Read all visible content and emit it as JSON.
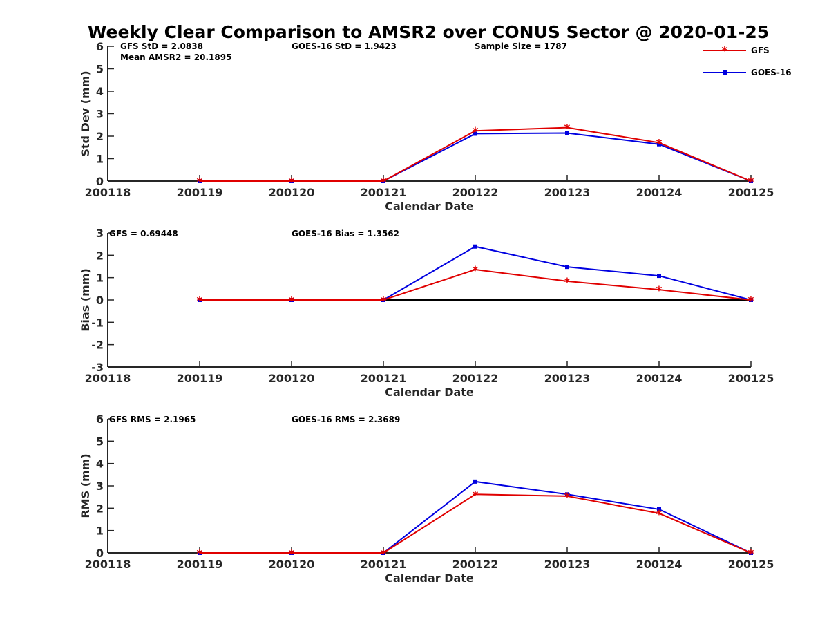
{
  "title": "Weekly Clear Comparison to AMSR2 over CONUS Sector @ 2020-01-25",
  "colors": {
    "gfs": "#e00000",
    "goes": "#0000e0",
    "axis": "#262626",
    "zero_line": "#000000"
  },
  "legend": {
    "placement": "top-right",
    "entries": [
      {
        "name": "GFS",
        "color": "#e00000",
        "marker": "asterisk"
      },
      {
        "name": "GOES-16",
        "color": "#0000e0",
        "marker": "square"
      }
    ]
  },
  "chart_data": [
    {
      "type": "line",
      "xlabel": "Calendar Date",
      "ylabel": "Std Dev (mm)",
      "x_ticks": [
        "200118",
        "200119",
        "200120",
        "200121",
        "200122",
        "200123",
        "200124",
        "200125"
      ],
      "y_ticks": [
        "0",
        "1",
        "2",
        "3",
        "4",
        "5",
        "6"
      ],
      "ylim": [
        0,
        6
      ],
      "annotations": [
        "GFS StD = 2.0838",
        "GOES-16 StD = 1.9423",
        "Sample Size = 1787",
        "Mean AMSR2 = 20.1895"
      ],
      "series": [
        {
          "name": "GFS",
          "x": [
            "200119",
            "200120",
            "200121",
            "200122",
            "200123",
            "200124",
            "200125"
          ],
          "values": [
            0,
            0,
            0,
            2.24,
            2.38,
            1.71,
            0
          ]
        },
        {
          "name": "GOES-16",
          "x": [
            "200119",
            "200120",
            "200121",
            "200122",
            "200123",
            "200124",
            "200125"
          ],
          "values": [
            0,
            0,
            0,
            2.11,
            2.14,
            1.64,
            0
          ]
        }
      ]
    },
    {
      "type": "line",
      "xlabel": "Calendar Date",
      "ylabel": "Bias (mm)",
      "x_ticks": [
        "200118",
        "200119",
        "200120",
        "200121",
        "200122",
        "200123",
        "200124",
        "200125"
      ],
      "y_ticks": [
        "-3",
        "-2",
        "-1",
        "0",
        "1",
        "2",
        "3"
      ],
      "ylim": [
        -3,
        3
      ],
      "zero_line": true,
      "annotations": [
        "GFS = 0.69448",
        "GOES-16 Bias  = 1.3562"
      ],
      "series": [
        {
          "name": "GFS",
          "x": [
            "200119",
            "200120",
            "200121",
            "200122",
            "200123",
            "200124",
            "200125"
          ],
          "values": [
            0,
            0,
            0,
            1.36,
            0.84,
            0.46,
            0
          ]
        },
        {
          "name": "GOES-16",
          "x": [
            "200119",
            "200120",
            "200121",
            "200122",
            "200123",
            "200124",
            "200125"
          ],
          "values": [
            0,
            0,
            0,
            2.39,
            1.48,
            1.08,
            0
          ]
        }
      ]
    },
    {
      "type": "line",
      "xlabel": "Calendar Date",
      "ylabel": "RMS (mm)",
      "x_ticks": [
        "200118",
        "200119",
        "200120",
        "200121",
        "200122",
        "200123",
        "200124",
        "200125"
      ],
      "y_ticks": [
        "0",
        "1",
        "2",
        "3",
        "4",
        "5",
        "6"
      ],
      "ylim": [
        0,
        6
      ],
      "annotations": [
        "GFS RMS = 2.1965",
        "GOES-16 RMS = 2.3689"
      ],
      "series": [
        {
          "name": "GFS",
          "x": [
            "200119",
            "200120",
            "200121",
            "200122",
            "200123",
            "200124",
            "200125"
          ],
          "values": [
            0,
            0,
            0,
            2.62,
            2.54,
            1.77,
            0
          ]
        },
        {
          "name": "GOES-16",
          "x": [
            "200119",
            "200120",
            "200121",
            "200122",
            "200123",
            "200124",
            "200125"
          ],
          "values": [
            0,
            0,
            0,
            3.19,
            2.62,
            1.95,
            0
          ]
        }
      ]
    }
  ]
}
